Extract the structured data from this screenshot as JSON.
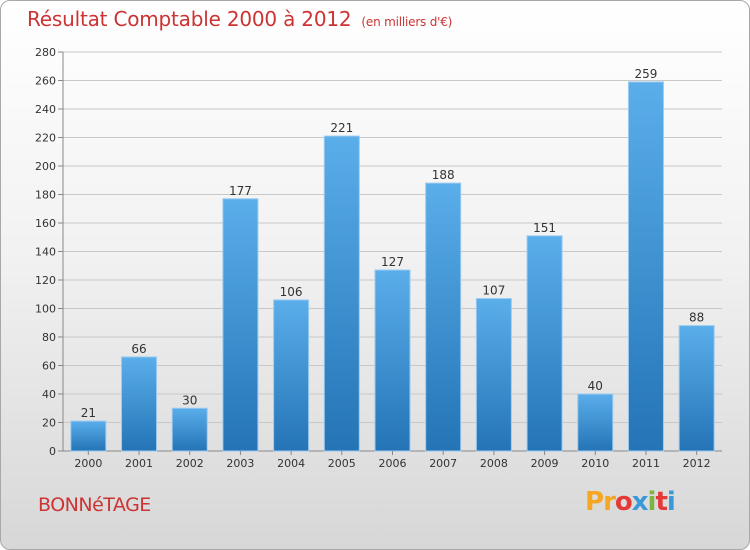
{
  "chart_data": {
    "type": "bar",
    "title": "Résultat Comptable 2000 à 2012",
    "subtitle": "(en milliers d'€)",
    "categories": [
      "2000",
      "2001",
      "2002",
      "2003",
      "2004",
      "2005",
      "2006",
      "2007",
      "2008",
      "2009",
      "2010",
      "2011",
      "2012"
    ],
    "values": [
      21,
      66,
      30,
      177,
      106,
      221,
      127,
      188,
      107,
      151,
      40,
      259,
      88
    ],
    "value_labels": [
      "21",
      "66",
      "30",
      "177",
      "106",
      "221",
      "127",
      "188",
      "107",
      "151",
      "40",
      "259",
      "88"
    ],
    "yticks": [
      "0",
      "20",
      "40",
      "60",
      "80",
      "100",
      "120",
      "140",
      "160",
      "180",
      "200",
      "220",
      "240",
      "260",
      "280"
    ],
    "ylim": [
      0,
      280
    ],
    "ytick_step": 20,
    "grid": true,
    "xlabel": "",
    "ylabel": ""
  },
  "footer": {
    "commune": "BONNéTAGE",
    "logo_letters": [
      "P",
      "r",
      "o",
      "x",
      "i",
      "t",
      "i"
    ]
  },
  "colors": {
    "title": "#cc3333",
    "bar_light": "#5aaeea",
    "bar_dark": "#2474b6",
    "logo": [
      "#f5a623",
      "#f5a623",
      "#e53935",
      "#3a9ad9",
      "#7cb342",
      "#e53935",
      "#3a9ad9"
    ]
  }
}
